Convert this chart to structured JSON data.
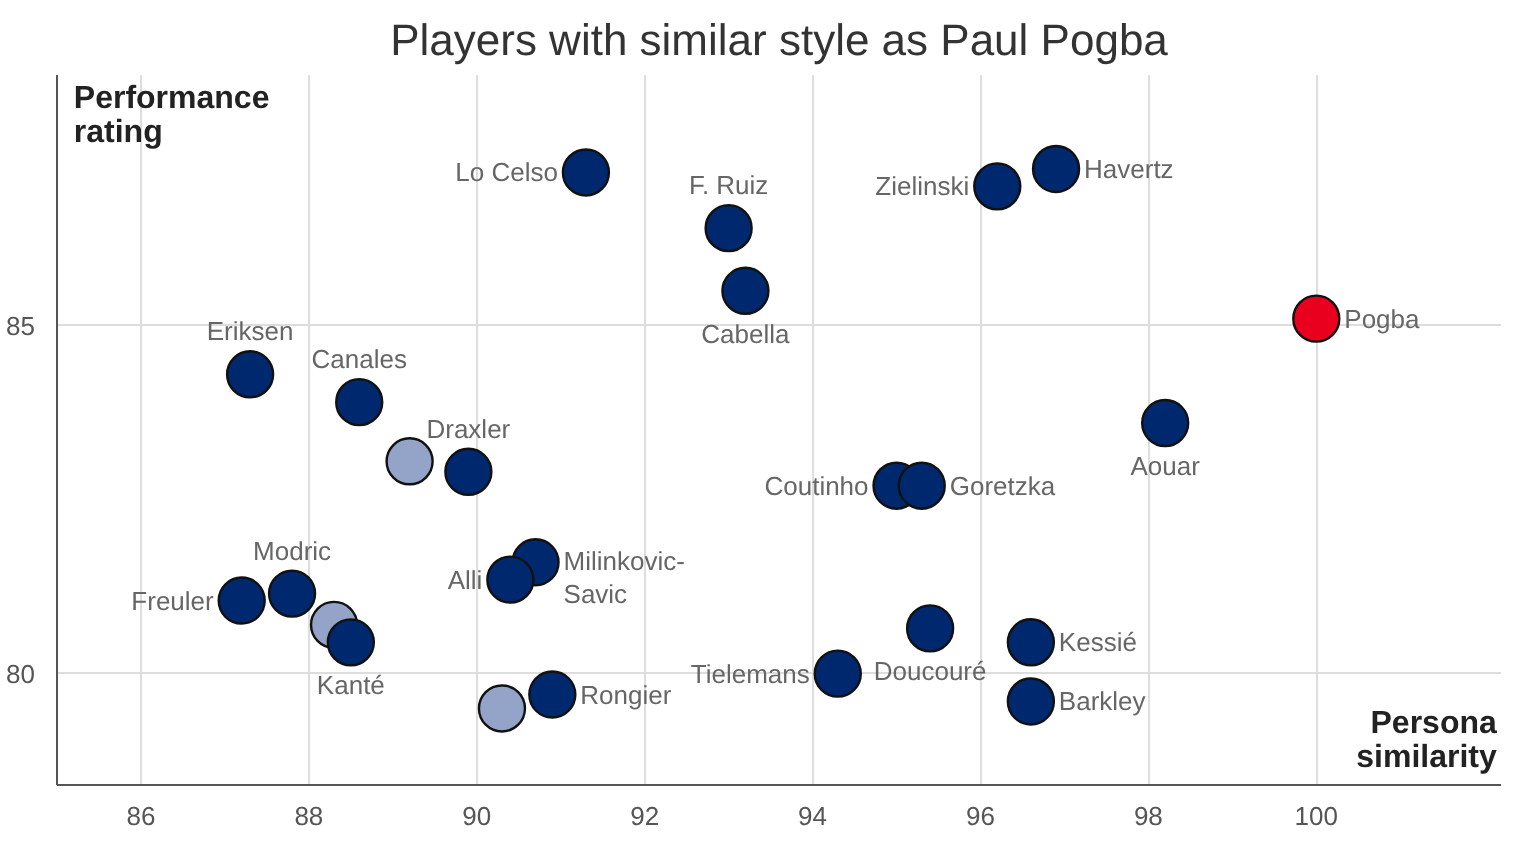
{
  "chart_data": {
    "type": "scatter",
    "title": "Players with similar style as Paul Pogba",
    "xlabel": "Persona similarity",
    "ylabel": "Performance rating",
    "xlim": [
      85,
      102.2
    ],
    "ylim": [
      78.4,
      88.6
    ],
    "xticks": [
      86,
      88,
      90,
      92,
      94,
      96,
      98,
      100
    ],
    "yticks": [
      80,
      85
    ],
    "grid": true,
    "marker": "circle",
    "series": [
      {
        "color": "#93a4c8",
        "x": [
          89.2,
          88.3,
          90.3
        ],
        "values": [
          83.05,
          80.7,
          79.5
        ]
      },
      {
        "colors": [
          "#00286e",
          "#00286e",
          "#00286e",
          "#00286e",
          "#00286e",
          "#00286e",
          "#00286e",
          "#00286e",
          "#00286e",
          "#00286e",
          "#00286e",
          "#00286e",
          "#00286e",
          "#00286e",
          "#e8001e",
          "#00286e",
          "#00286e",
          "#00286e",
          "#00286e",
          "#00286e",
          "#00286e",
          "#00286e"
        ],
        "x": [
          91.3,
          93.0,
          93.2,
          87.3,
          88.6,
          89.9,
          90.7,
          90.4,
          87.2,
          87.8,
          88.5,
          90.9,
          96.2,
          96.9,
          100,
          98.2,
          95.0,
          95.3,
          95.4,
          94.3,
          96.6,
          96.6
        ],
        "values": [
          87.2,
          86.4,
          85.5,
          84.3,
          83.9,
          82.9,
          81.6,
          81.35,
          81.05,
          81.15,
          80.45,
          79.7,
          87.0,
          87.25,
          85.1,
          83.6,
          82.7,
          82.7,
          80.65,
          80.0,
          80.45,
          79.6
        ],
        "value_labels": [
          "Lo Celso",
          "F. Ruiz",
          "Cabella",
          "Eriksen",
          "Canales",
          "Draxler",
          "Milinkovic-Savic",
          "Alli",
          "Freuler",
          "Modric",
          "Kanté",
          "Rongier",
          "Zielinski",
          "Havertz",
          "Pogba",
          "Aouar",
          "Coutinho",
          "Goretzka",
          "Doucouré",
          "Tielemans",
          "Kessié",
          "Barkley"
        ]
      }
    ]
  }
}
